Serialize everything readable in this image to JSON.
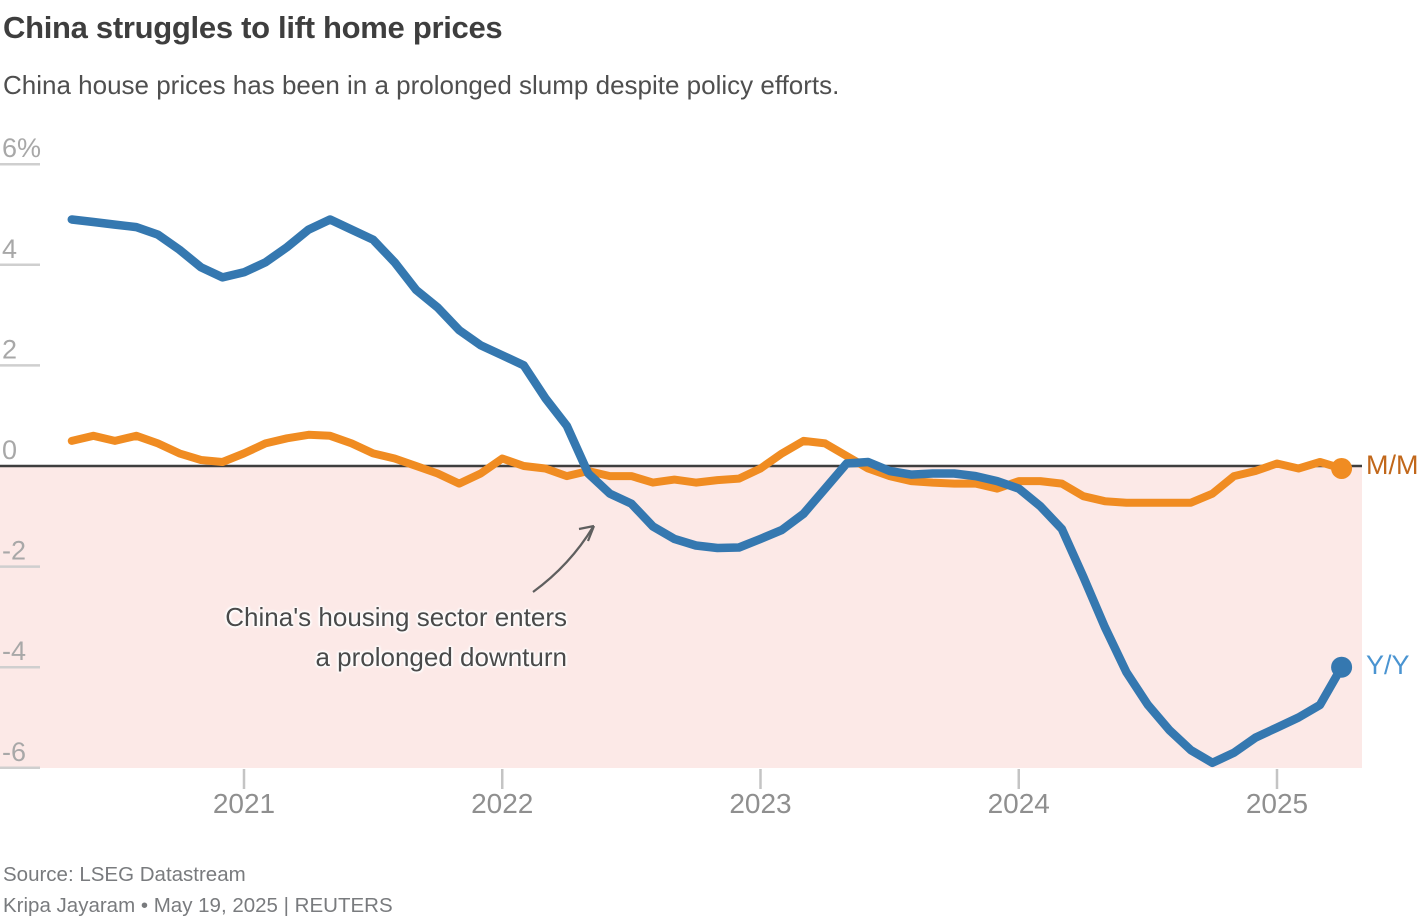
{
  "header": {
    "title": "China struggles to lift home prices",
    "subtitle": "China house prices has been in a prolonged slump despite policy efforts."
  },
  "annotation": {
    "line1": "China's housing sector enters",
    "line2": "a prolonged downturn"
  },
  "source": {
    "line1": "Source: LSEG Datastream",
    "line2": "Kripa Jayaram • May 19, 2025 | REUTERS"
  },
  "colors": {
    "baseline": "#3e3e3e",
    "negative_fill": "#fce9e7",
    "y_tick": "#cfcfcf",
    "x_tick": "#c4c4c4",
    "arrow": "#5f5f5f"
  },
  "chart_data": {
    "type": "line",
    "title": "China struggles to lift home prices",
    "subtitle": "China house prices has been in a prolonged slump despite policy efforts.",
    "x_unit": "month",
    "frequency": "monthly",
    "start_month": "2020-05",
    "end_month": "2025-04",
    "xlabel": "",
    "ylabel": "percent change",
    "ylim": [
      -6.5,
      6.5
    ],
    "y_ticks": [
      6,
      4,
      2,
      0,
      -2,
      -4,
      -6
    ],
    "y_tick_labels": [
      "6%",
      "4",
      "2",
      "0",
      "-2",
      "-4",
      "-6"
    ],
    "x_tick_labels": [
      "2021",
      "2022",
      "2023",
      "2024",
      "2025"
    ],
    "grid": "short left tick dashes per y value; dark zero baseline; pink shading below zero",
    "legend_position": "right of line ends",
    "series": [
      {
        "name": "M/M",
        "color": "#f08c22",
        "label_color": "#c1671a",
        "end_dot": true,
        "values": [
          0.5,
          0.6,
          0.5,
          0.6,
          0.45,
          0.25,
          0.12,
          0.08,
          0.25,
          0.45,
          0.55,
          0.62,
          0.6,
          0.45,
          0.25,
          0.15,
          0.0,
          -0.15,
          -0.35,
          -0.15,
          0.15,
          0.0,
          -0.05,
          -0.2,
          -0.1,
          -0.2,
          -0.2,
          -0.33,
          -0.27,
          -0.33,
          -0.28,
          -0.25,
          -0.05,
          0.25,
          0.5,
          0.45,
          0.2,
          -0.05,
          -0.2,
          -0.3,
          -0.33,
          -0.35,
          -0.35,
          -0.45,
          -0.3,
          -0.3,
          -0.35,
          -0.6,
          -0.7,
          -0.73,
          -0.73,
          -0.73,
          -0.73,
          -0.55,
          -0.2,
          -0.1,
          0.05,
          -0.05,
          0.08,
          -0.05
        ]
      },
      {
        "name": "Y/Y",
        "color": "#3578b0",
        "label_color": "#4a94d1",
        "end_dot": true,
        "values": [
          4.9,
          4.85,
          4.8,
          4.75,
          4.6,
          4.3,
          3.95,
          3.75,
          3.85,
          4.05,
          4.35,
          4.7,
          4.9,
          4.7,
          4.5,
          4.05,
          3.5,
          3.15,
          2.7,
          2.4,
          2.2,
          2.0,
          1.35,
          0.8,
          -0.15,
          -0.55,
          -0.75,
          -1.2,
          -1.45,
          -1.58,
          -1.63,
          -1.62,
          -1.45,
          -1.27,
          -0.95,
          -0.45,
          0.05,
          0.08,
          -0.1,
          -0.17,
          -0.15,
          -0.15,
          -0.2,
          -0.3,
          -0.45,
          -0.8,
          -1.25,
          -2.2,
          -3.2,
          -4.1,
          -4.75,
          -5.25,
          -5.65,
          -5.9,
          -5.7,
          -5.4,
          -5.2,
          -5.0,
          -4.75,
          -4.0
        ]
      }
    ]
  }
}
